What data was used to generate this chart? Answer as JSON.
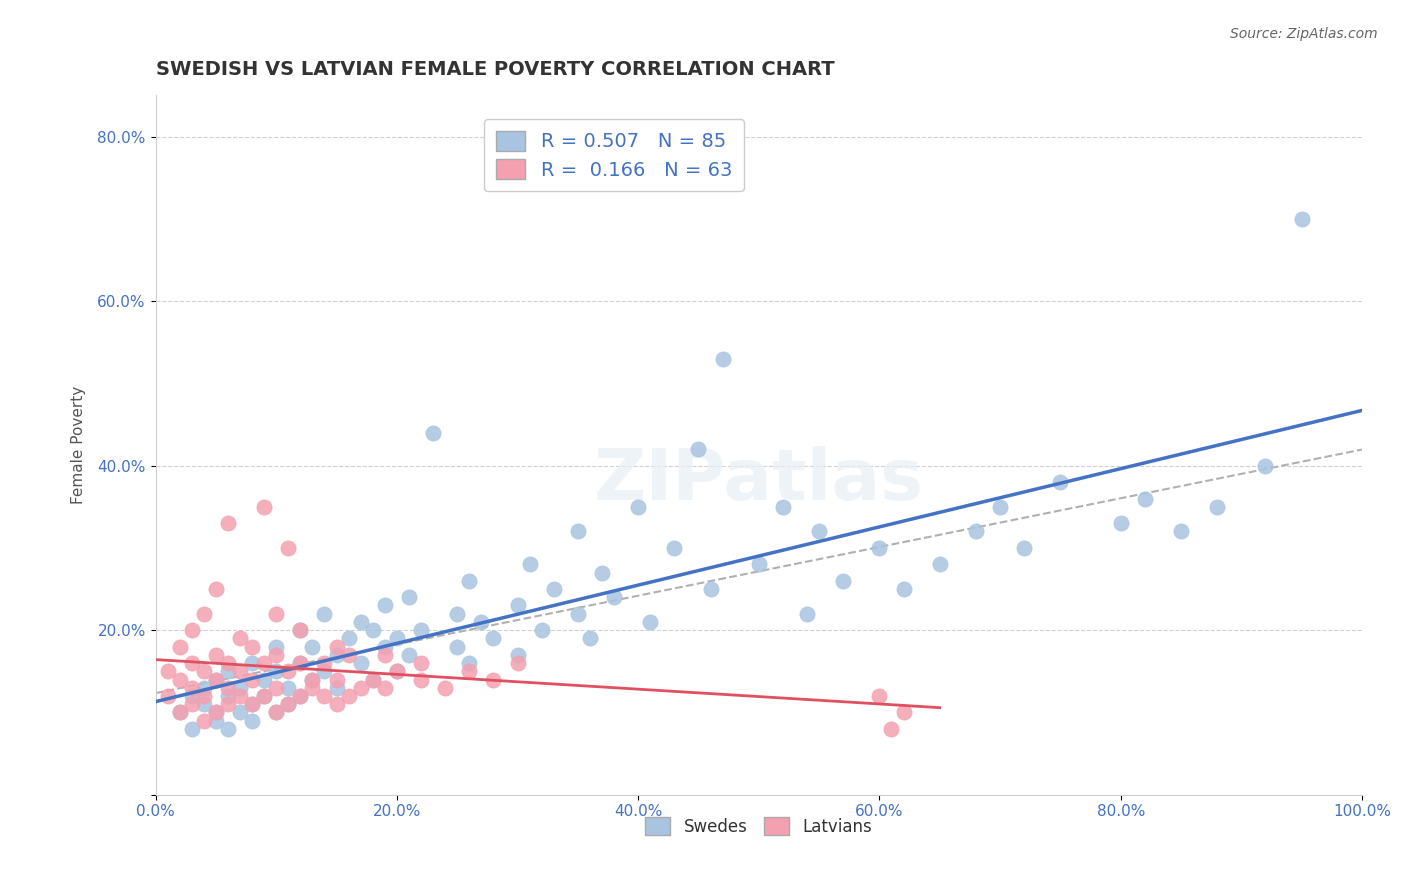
{
  "title": "SWEDISH VS LATVIAN FEMALE POVERTY CORRELATION CHART",
  "source": "Source: ZipAtlas.com",
  "xlabel": "",
  "ylabel": "Female Poverty",
  "xlim": [
    0.0,
    1.0
  ],
  "ylim": [
    0.0,
    0.85
  ],
  "xticks": [
    0.0,
    0.2,
    0.4,
    0.6,
    0.8,
    1.0
  ],
  "xticklabels": [
    "0.0%",
    "20.0%",
    "40.0%",
    "60.0%",
    "80.0%",
    "100.0%"
  ],
  "yticks": [
    0.0,
    0.2,
    0.4,
    0.6,
    0.8
  ],
  "yticklabels": [
    "",
    "20.0%",
    "40.0%",
    "60.0%",
    "80.0%"
  ],
  "swedes_color": "#a8c4e0",
  "latvians_color": "#f4a0b0",
  "line_swedes_color": "#4472c4",
  "line_latvians_color": "#e05060",
  "regression_line_color": "#b0b0b0",
  "R_swedes": 0.507,
  "N_swedes": 85,
  "R_latvians": 0.166,
  "N_latvians": 63,
  "swedes_x": [
    0.02,
    0.03,
    0.03,
    0.04,
    0.04,
    0.05,
    0.05,
    0.05,
    0.06,
    0.06,
    0.06,
    0.07,
    0.07,
    0.08,
    0.08,
    0.08,
    0.09,
    0.09,
    0.1,
    0.1,
    0.1,
    0.11,
    0.11,
    0.12,
    0.12,
    0.12,
    0.13,
    0.13,
    0.14,
    0.14,
    0.15,
    0.15,
    0.16,
    0.17,
    0.17,
    0.18,
    0.18,
    0.19,
    0.19,
    0.2,
    0.2,
    0.21,
    0.21,
    0.22,
    0.23,
    0.25,
    0.25,
    0.26,
    0.26,
    0.27,
    0.28,
    0.3,
    0.3,
    0.31,
    0.32,
    0.33,
    0.35,
    0.35,
    0.36,
    0.37,
    0.38,
    0.4,
    0.41,
    0.43,
    0.45,
    0.46,
    0.47,
    0.5,
    0.52,
    0.54,
    0.55,
    0.57,
    0.6,
    0.62,
    0.65,
    0.68,
    0.7,
    0.72,
    0.75,
    0.8,
    0.82,
    0.85,
    0.88,
    0.92,
    0.95
  ],
  "swedes_y": [
    0.1,
    0.12,
    0.08,
    0.11,
    0.13,
    0.09,
    0.14,
    0.1,
    0.12,
    0.08,
    0.15,
    0.1,
    0.13,
    0.11,
    0.16,
    0.09,
    0.14,
    0.12,
    0.1,
    0.15,
    0.18,
    0.13,
    0.11,
    0.16,
    0.12,
    0.2,
    0.14,
    0.18,
    0.15,
    0.22,
    0.13,
    0.17,
    0.19,
    0.16,
    0.21,
    0.14,
    0.2,
    0.18,
    0.23,
    0.15,
    0.19,
    0.17,
    0.24,
    0.2,
    0.44,
    0.18,
    0.22,
    0.16,
    0.26,
    0.21,
    0.19,
    0.23,
    0.17,
    0.28,
    0.2,
    0.25,
    0.22,
    0.32,
    0.19,
    0.27,
    0.24,
    0.35,
    0.21,
    0.3,
    0.42,
    0.25,
    0.53,
    0.28,
    0.35,
    0.22,
    0.32,
    0.26,
    0.3,
    0.25,
    0.28,
    0.32,
    0.35,
    0.3,
    0.38,
    0.33,
    0.36,
    0.32,
    0.35,
    0.4,
    0.7
  ],
  "latvians_x": [
    0.01,
    0.01,
    0.02,
    0.02,
    0.02,
    0.03,
    0.03,
    0.03,
    0.03,
    0.04,
    0.04,
    0.04,
    0.04,
    0.05,
    0.05,
    0.05,
    0.05,
    0.06,
    0.06,
    0.06,
    0.06,
    0.07,
    0.07,
    0.07,
    0.08,
    0.08,
    0.08,
    0.09,
    0.09,
    0.09,
    0.1,
    0.1,
    0.1,
    0.1,
    0.11,
    0.11,
    0.11,
    0.12,
    0.12,
    0.12,
    0.13,
    0.13,
    0.14,
    0.14,
    0.15,
    0.15,
    0.15,
    0.16,
    0.16,
    0.17,
    0.18,
    0.19,
    0.19,
    0.2,
    0.22,
    0.22,
    0.24,
    0.26,
    0.28,
    0.3,
    0.6,
    0.61,
    0.62
  ],
  "latvians_y": [
    0.12,
    0.15,
    0.1,
    0.14,
    0.18,
    0.11,
    0.13,
    0.16,
    0.2,
    0.09,
    0.12,
    0.15,
    0.22,
    0.1,
    0.14,
    0.17,
    0.25,
    0.11,
    0.13,
    0.16,
    0.33,
    0.12,
    0.15,
    0.19,
    0.11,
    0.14,
    0.18,
    0.12,
    0.16,
    0.35,
    0.1,
    0.13,
    0.17,
    0.22,
    0.11,
    0.15,
    0.3,
    0.12,
    0.16,
    0.2,
    0.13,
    0.14,
    0.12,
    0.16,
    0.11,
    0.14,
    0.18,
    0.12,
    0.17,
    0.13,
    0.14,
    0.13,
    0.17,
    0.15,
    0.16,
    0.14,
    0.13,
    0.15,
    0.14,
    0.16,
    0.12,
    0.08,
    0.1
  ],
  "watermark": "ZIPatlas",
  "background_color": "#ffffff",
  "grid_color": "#d0d0d0"
}
